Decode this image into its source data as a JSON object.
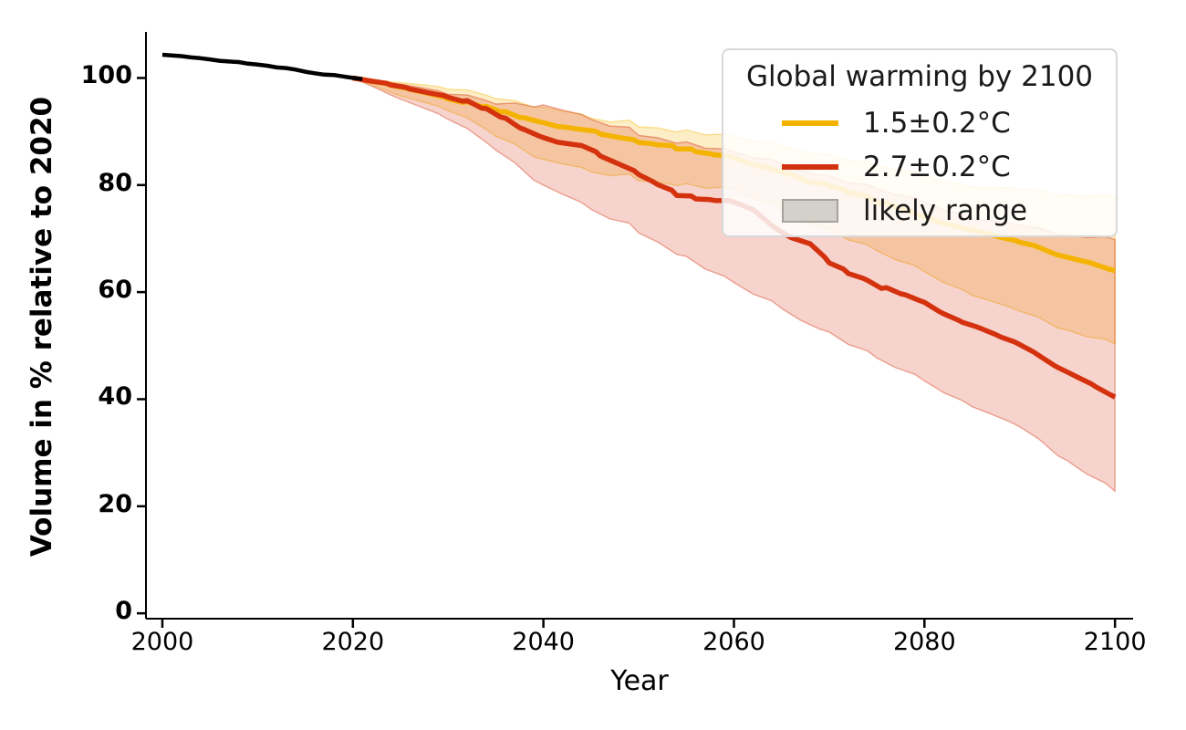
{
  "chart_data": {
    "type": "line",
    "title": "",
    "xlabel": "Year",
    "ylabel": "Volume in % relative to 2020",
    "xlim": [
      1998.28,
      2101.9
    ],
    "ylim": [
      -1,
      108.6
    ],
    "xticks": [
      2000,
      2020,
      2040,
      2060,
      2080,
      2100
    ],
    "yticks": [
      0,
      20,
      40,
      60,
      80,
      100
    ],
    "grid": false,
    "background": "#ffffff",
    "legend": {
      "title": "Global warming by 2100",
      "position": "upper right",
      "entries": [
        {
          "label": "1.5±0.2°C",
          "swatch": "line",
          "color": "#F5B301"
        },
        {
          "label": "2.7±0.2°C",
          "swatch": "line",
          "color": "#D4310E"
        },
        {
          "label": "likely range",
          "swatch": "patch",
          "color": "#D4D1CB",
          "border": "#A6A29C"
        }
      ]
    },
    "series": [
      {
        "id": "historical",
        "color": "#000000",
        "line_width": 4.5,
        "points": [
          [
            2000,
            104.3
          ],
          [
            2001,
            104.3
          ],
          [
            2002,
            104.0
          ],
          [
            2003,
            103.9
          ],
          [
            2004,
            103.6
          ],
          [
            2005,
            103.5
          ],
          [
            2006,
            103.2
          ],
          [
            2007,
            103.1
          ],
          [
            2008,
            102.9
          ],
          [
            2009,
            102.7
          ],
          [
            2010,
            102.5
          ],
          [
            2011,
            102.2
          ],
          [
            2012,
            102.0
          ],
          [
            2013,
            101.8
          ],
          [
            2014,
            101.5
          ],
          [
            2015,
            101.2
          ],
          [
            2016,
            100.9
          ],
          [
            2017,
            100.7
          ],
          [
            2018,
            100.5
          ],
          [
            2019,
            100.2
          ],
          [
            2020,
            100.0
          ],
          [
            2021,
            99.8
          ]
        ]
      },
      {
        "id": "warming-1.5C",
        "label": "1.5±0.2°C",
        "color": "#F5B301",
        "line_width": 5.5,
        "points": [
          [
            2020,
            100
          ],
          [
            2022,
            99.4
          ],
          [
            2024,
            98.7
          ],
          [
            2026,
            98.0
          ],
          [
            2028,
            97.2
          ],
          [
            2030,
            96.3
          ],
          [
            2032,
            95.4
          ],
          [
            2034,
            94.6
          ],
          [
            2036,
            93.6
          ],
          [
            2038,
            92.4
          ],
          [
            2040,
            91.4
          ],
          [
            2042,
            90.7
          ],
          [
            2044,
            90.2
          ],
          [
            2046,
            89.7
          ],
          [
            2048,
            89.0
          ],
          [
            2050,
            88.2
          ],
          [
            2052,
            87.6
          ],
          [
            2054,
            87.0
          ],
          [
            2056,
            86.4
          ],
          [
            2058,
            85.8
          ],
          [
            2060,
            85.2
          ],
          [
            2062,
            84.0
          ],
          [
            2064,
            82.9
          ],
          [
            2066,
            81.8
          ],
          [
            2068,
            80.8
          ],
          [
            2070,
            79.8
          ],
          [
            2072,
            78.7
          ],
          [
            2074,
            77.6
          ],
          [
            2076,
            76.4
          ],
          [
            2078,
            75.2
          ],
          [
            2080,
            74.0
          ],
          [
            2082,
            73.0
          ],
          [
            2084,
            72.0
          ],
          [
            2086,
            71.0
          ],
          [
            2088,
            70.1
          ],
          [
            2090,
            69.2
          ],
          [
            2092,
            68.2
          ],
          [
            2094,
            67.1
          ],
          [
            2096,
            66.0
          ],
          [
            2098,
            65.0
          ],
          [
            2100,
            64.0
          ]
        ],
        "band": {
          "fill_opacity": 0.22,
          "hi": [
            [
              2020,
              100
            ],
            [
              2025,
              99.3
            ],
            [
              2030,
              98.2
            ],
            [
              2035,
              96.2
            ],
            [
              2040,
              94.0
            ],
            [
              2045,
              92.6
            ],
            [
              2050,
              91.4
            ],
            [
              2055,
              90.2
            ],
            [
              2060,
              89.3
            ],
            [
              2065,
              87.6
            ],
            [
              2070,
              85.6
            ],
            [
              2075,
              83.6
            ],
            [
              2080,
              81.6
            ],
            [
              2085,
              80.0
            ],
            [
              2090,
              79.0
            ],
            [
              2095,
              78.3
            ],
            [
              2100,
              77.8
            ]
          ],
          "lo": [
            [
              2020,
              100
            ],
            [
              2025,
              96.8
            ],
            [
              2030,
              94.2
            ],
            [
              2035,
              89.2
            ],
            [
              2040,
              84.2
            ],
            [
              2045,
              82.6
            ],
            [
              2050,
              81.3
            ],
            [
              2055,
              80.2
            ],
            [
              2060,
              79.4
            ],
            [
              2065,
              75.6
            ],
            [
              2070,
              71.6
            ],
            [
              2075,
              67.6
            ],
            [
              2080,
              63.6
            ],
            [
              2085,
              59.8
            ],
            [
              2090,
              56.2
            ],
            [
              2095,
              53.0
            ],
            [
              2100,
              50.3
            ]
          ]
        }
      },
      {
        "id": "warming-2.7C",
        "label": "2.7±0.2°C",
        "color": "#D4310E",
        "line_width": 5.5,
        "points": [
          [
            2020,
            100
          ],
          [
            2022,
            99.4
          ],
          [
            2024,
            98.8
          ],
          [
            2026,
            98.1
          ],
          [
            2028,
            97.3
          ],
          [
            2030,
            96.6
          ],
          [
            2032,
            95.6
          ],
          [
            2034,
            94.2
          ],
          [
            2036,
            92.4
          ],
          [
            2038,
            90.2
          ],
          [
            2040,
            88.6
          ],
          [
            2042,
            87.7
          ],
          [
            2044,
            87.2
          ],
          [
            2046,
            85.6
          ],
          [
            2048,
            84.0
          ],
          [
            2050,
            82.2
          ],
          [
            2052,
            80.2
          ],
          [
            2054,
            78.3
          ],
          [
            2056,
            77.6
          ],
          [
            2058,
            77.3
          ],
          [
            2060,
            76.9
          ],
          [
            2062,
            75.6
          ],
          [
            2064,
            72.3
          ],
          [
            2066,
            70.0
          ],
          [
            2068,
            69.3
          ],
          [
            2070,
            65.4
          ],
          [
            2072,
            63.6
          ],
          [
            2074,
            62.0
          ],
          [
            2076,
            60.6
          ],
          [
            2078,
            59.3
          ],
          [
            2080,
            58.0
          ],
          [
            2082,
            56.1
          ],
          [
            2084,
            54.4
          ],
          [
            2086,
            53.0
          ],
          [
            2088,
            51.5
          ],
          [
            2090,
            50.1
          ],
          [
            2092,
            48.0
          ],
          [
            2094,
            46.1
          ],
          [
            2096,
            44.1
          ],
          [
            2098,
            42.2
          ],
          [
            2100,
            40.4
          ]
        ],
        "band": {
          "fill_opacity": 0.21,
          "hi": [
            [
              2020,
              100
            ],
            [
              2025,
              99.0
            ],
            [
              2030,
              97.3
            ],
            [
              2035,
              95.2
            ],
            [
              2040,
              94.4
            ],
            [
              2045,
              92.4
            ],
            [
              2050,
              89.8
            ],
            [
              2055,
              88.0
            ],
            [
              2060,
              86.4
            ],
            [
              2065,
              84.2
            ],
            [
              2070,
              81.6
            ],
            [
              2075,
              79.2
            ],
            [
              2080,
              76.6
            ],
            [
              2085,
              74.2
            ],
            [
              2090,
              72.2
            ],
            [
              2095,
              70.8
            ],
            [
              2100,
              69.8
            ]
          ],
          "lo": [
            [
              2020,
              100
            ],
            [
              2025,
              96.2
            ],
            [
              2030,
              92.6
            ],
            [
              2035,
              86.6
            ],
            [
              2040,
              79.4
            ],
            [
              2045,
              75.6
            ],
            [
              2050,
              71.6
            ],
            [
              2055,
              66.6
            ],
            [
              2060,
              62.0
            ],
            [
              2065,
              57.2
            ],
            [
              2070,
              52.4
            ],
            [
              2075,
              47.6
            ],
            [
              2080,
              43.2
            ],
            [
              2085,
              39.0
            ],
            [
              2090,
              34.6
            ],
            [
              2095,
              28.6
            ],
            [
              2100,
              22.8
            ]
          ]
        }
      }
    ]
  }
}
